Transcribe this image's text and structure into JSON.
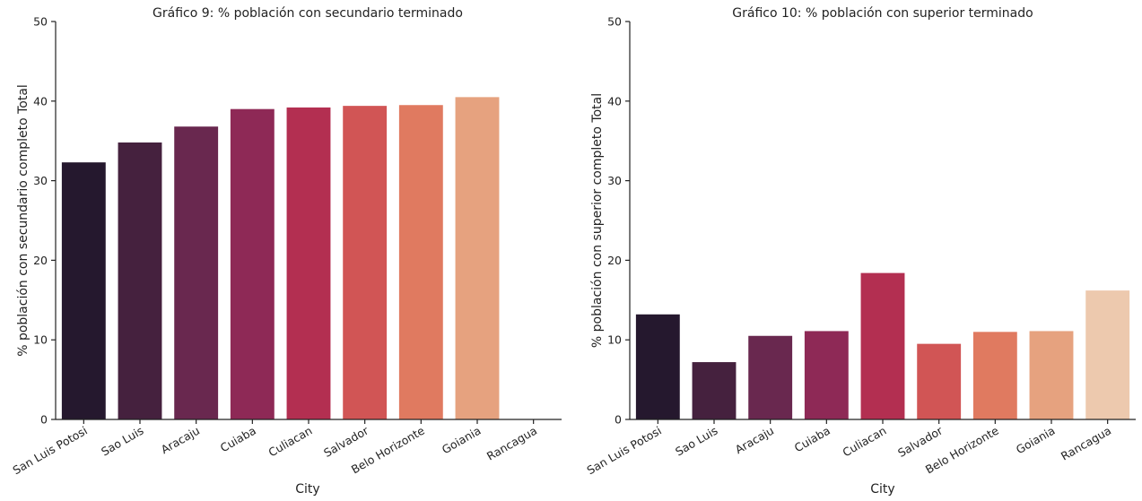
{
  "chart_data": [
    {
      "type": "bar",
      "title": "Gráfico 9: % población con secundario terminado",
      "xlabel": "City",
      "ylabel": "% población con secundario completo Total",
      "ylim": [
        0,
        50
      ],
      "yticks": [
        0,
        10,
        20,
        30,
        40,
        50
      ],
      "grid": false,
      "categories": [
        "San Luis Potosi",
        "Sao Luis",
        "Aracaju",
        "Cuiaba",
        "Culiacan",
        "Salvador",
        "Belo Horizonte",
        "Goiania",
        "Rancagua"
      ],
      "values": [
        32.3,
        34.8,
        36.8,
        39.0,
        39.2,
        39.4,
        39.5,
        40.5,
        null
      ],
      "colors": [
        "#25182e",
        "#45213e",
        "#69284f",
        "#8e2956",
        "#b32f51",
        "#d15555",
        "#e07a60",
        "#e6a27f",
        "#edc9ae"
      ]
    },
    {
      "type": "bar",
      "title": "Gráfico 10: % población con superior terminado",
      "xlabel": "City",
      "ylabel": "% población con superior completo Total",
      "ylim": [
        0,
        50
      ],
      "yticks": [
        0,
        10,
        20,
        30,
        40,
        50
      ],
      "grid": false,
      "categories": [
        "San Luis Potosi",
        "Sao Luis",
        "Aracaju",
        "Cuiaba",
        "Culiacan",
        "Salvador",
        "Belo Horizonte",
        "Goiania",
        "Rancagua"
      ],
      "values": [
        13.2,
        7.2,
        10.5,
        11.1,
        18.4,
        9.5,
        11.0,
        11.1,
        16.2
      ],
      "colors": [
        "#25182e",
        "#45213e",
        "#69284f",
        "#8e2956",
        "#b32f51",
        "#d15555",
        "#e07a60",
        "#e6a27f",
        "#edc9ae"
      ]
    }
  ]
}
